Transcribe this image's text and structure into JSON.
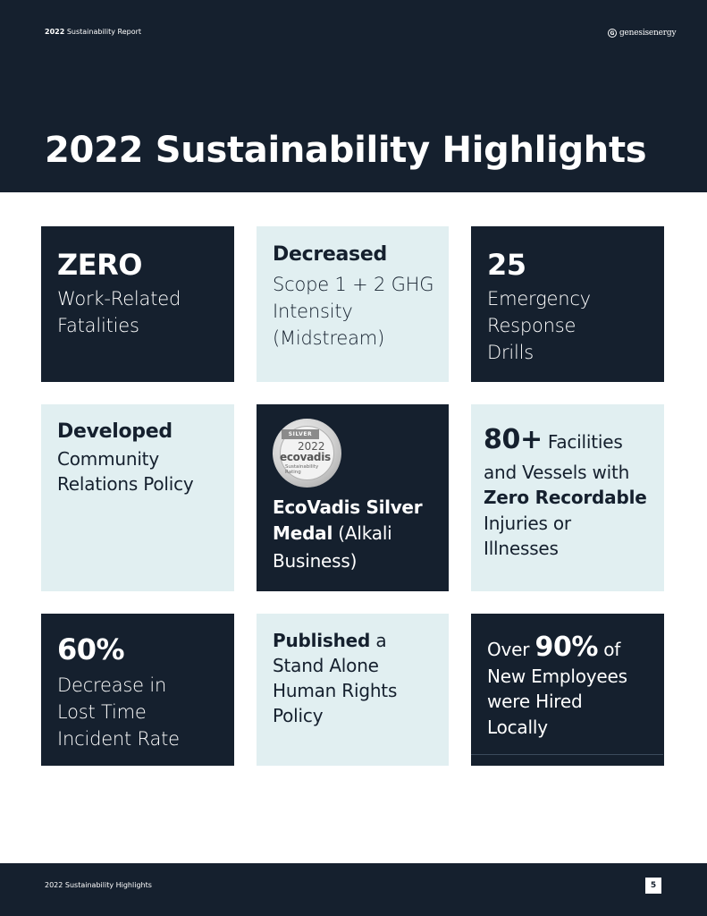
{
  "header": {
    "report_year": "2022",
    "report_label": "Sustainability Report",
    "logo_mark": "G",
    "logo_text": "genesisenergy",
    "title": "2022 Sustainability Highlights"
  },
  "cards": {
    "fatalities": {
      "value": "ZERO",
      "line1": "Work-Related",
      "line2": "Fatalities"
    },
    "ghg": {
      "heading": "Decreased",
      "line1": "Scope 1 + 2 GHG",
      "line2": "Intensity",
      "line3": "(Midstream)"
    },
    "drills": {
      "value": "25",
      "line1": "Emergency",
      "line2": "Response",
      "line3": "Drills"
    },
    "community": {
      "heading": "Developed",
      "line1": "Community",
      "line2": "Relations Policy"
    },
    "ecovadis": {
      "medal_ribbon": "SILVER",
      "medal_year": "2022",
      "medal_brand": "ecovadis",
      "medal_sub1": "Sustainability",
      "medal_sub2": "Rating",
      "bold1": "EcoVadis Silver",
      "bold2": "Medal",
      "rest2": " (Alkali",
      "line3": "Business)"
    },
    "facilities": {
      "value": "80+",
      "rest1": " Facilities",
      "line2": "and Vessels with",
      "bold3": "Zero Recordable",
      "line4": "Injuries or",
      "line5": "Illnesses"
    },
    "lost_time": {
      "value": "60%",
      "line1": "Decrease in",
      "line2": "Lost Time",
      "line3": "Incident Rate"
    },
    "human_rights": {
      "bold": "Published",
      "rest1": " a",
      "line2": "Stand Alone",
      "line3": "Human Rights",
      "line4": "Policy"
    },
    "local_hiring": {
      "pre": "Over ",
      "value": "90%",
      "post": " of",
      "line2": "New Employees",
      "line3": "were Hired",
      "line4": "Locally"
    }
  },
  "footer": {
    "label": "2022 Sustainability Highlights",
    "page_number": "5"
  },
  "colors": {
    "navy": "#15202e",
    "light_teal": "#e1eff1",
    "white": "#ffffff"
  }
}
